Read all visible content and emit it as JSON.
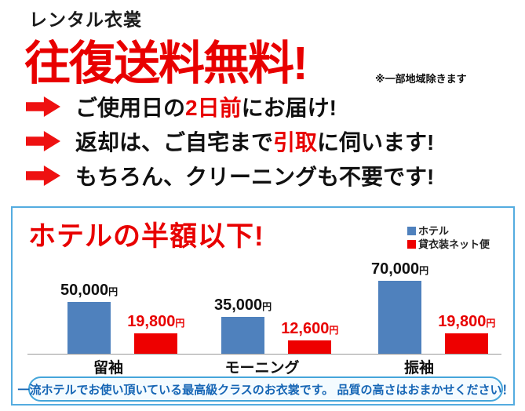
{
  "header": {
    "small_title": "レンタル衣裳",
    "main_title": "往復送料無料!",
    "note": "※一部地域除きます"
  },
  "bullets": [
    {
      "parts": [
        {
          "text": "ご使用日の",
          "color": "black"
        },
        {
          "text": "2日前",
          "color": "red"
        },
        {
          "text": "にお届け!",
          "color": "black"
        }
      ]
    },
    {
      "parts": [
        {
          "text": "返却は、ご自宅まで",
          "color": "black"
        },
        {
          "text": "引取",
          "color": "red"
        },
        {
          "text": "に伺います!",
          "color": "black"
        }
      ]
    },
    {
      "parts": [
        {
          "text": "もちろん、クリーニングも不要です!",
          "color": "black"
        }
      ]
    }
  ],
  "chart_data": {
    "type": "bar",
    "title": "ホテルの半額以下!",
    "categories": [
      "留袖",
      "モーニング",
      "振袖"
    ],
    "series": [
      {
        "name": "ホテル",
        "color": "#4f81bd",
        "label_color": "#111111",
        "values": [
          50000,
          35000,
          70000
        ],
        "labels": [
          "50,000",
          "35,000",
          "70,000"
        ]
      },
      {
        "name": "貸衣装ネット便",
        "color": "#ee0000",
        "label_color": "#e80000",
        "values": [
          19800,
          12600,
          19800
        ],
        "labels": [
          "19,800",
          "12,600",
          "19,800"
        ]
      }
    ],
    "unit_suffix": "円",
    "ylim": [
      0,
      70000
    ],
    "grid": false,
    "legend_position": "top-right"
  },
  "footer_pill": {
    "text": "一流ホテルでお使い頂いている最高級クラスのお衣裳です。 品質の高さはおまかせください！"
  },
  "colors": {
    "accent_red": "#e80000",
    "hotel_blue": "#4f81bd",
    "box_border_blue": "#54ace0",
    "pill_border_blue": "#45a5da",
    "pill_text_blue": "#1565b5",
    "pill_bg": "#f4fbff"
  }
}
